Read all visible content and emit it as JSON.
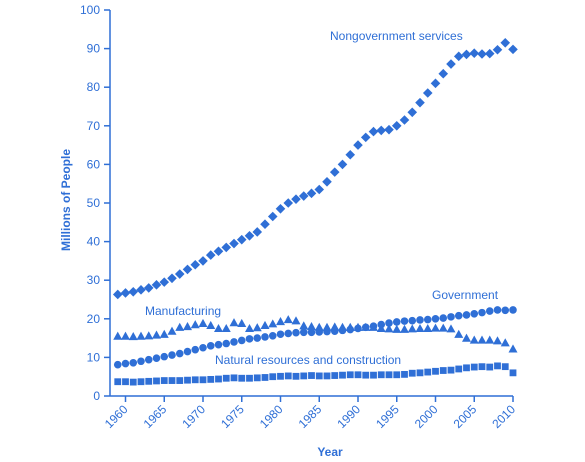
{
  "chart_data": {
    "type": "scatter",
    "xlabel": "Year",
    "ylabel": "Millions of People",
    "xlim": [
      1958,
      2010
    ],
    "ylim": [
      0,
      100
    ],
    "x_ticks": [
      "1960",
      "1965",
      "1970",
      "1975",
      "1980",
      "1985",
      "1990",
      "1995",
      "2000",
      "2005",
      "2010"
    ],
    "y_ticks": [
      "0",
      "10",
      "20",
      "30",
      "40",
      "50",
      "60",
      "70",
      "80",
      "90",
      "100"
    ],
    "grid": false,
    "series_color": "#2f6fd6",
    "series": [
      {
        "name": "Nongovernment services",
        "marker": "diamond",
        "x": [
          1959,
          1960,
          1961,
          1962,
          1963,
          1964,
          1965,
          1966,
          1967,
          1968,
          1969,
          1970,
          1971,
          1972,
          1973,
          1974,
          1975,
          1976,
          1977,
          1978,
          1979,
          1980,
          1981,
          1982,
          1983,
          1984,
          1985,
          1986,
          1987,
          1988,
          1989,
          1990,
          1991,
          1992,
          1993,
          1994,
          1995,
          1996,
          1997,
          1998,
          1999,
          2000,
          2001,
          2002,
          2003,
          2004,
          2005,
          2006,
          2007,
          2008,
          2009,
          2010
        ],
        "values": [
          26.3,
          26.7,
          27.0,
          27.5,
          28.0,
          28.8,
          29.5,
          30.5,
          31.6,
          32.8,
          34.0,
          35.0,
          36.5,
          37.5,
          38.5,
          39.5,
          40.5,
          41.5,
          42.5,
          44.5,
          46.5,
          48.5,
          50.0,
          51.0,
          51.8,
          52.5,
          53.5,
          55.5,
          58.0,
          60.0,
          62.5,
          65.0,
          67.0,
          68.5,
          68.8,
          69.0,
          70.0,
          71.5,
          73.5,
          76.0,
          78.5,
          81.0,
          83.5,
          86.0,
          88.0,
          88.5,
          88.8,
          88.6,
          88.7,
          89.7,
          91.5,
          89.8
        ]
      },
      {
        "name": "Government",
        "marker": "circle",
        "x": [
          1959,
          1960,
          1961,
          1962,
          1963,
          1964,
          1965,
          1966,
          1967,
          1968,
          1969,
          1970,
          1971,
          1972,
          1973,
          1974,
          1975,
          1976,
          1977,
          1978,
          1979,
          1980,
          1981,
          1982,
          1983,
          1984,
          1985,
          1986,
          1987,
          1988,
          1989,
          1990,
          1991,
          1992,
          1993,
          1994,
          1995,
          1996,
          1997,
          1998,
          1999,
          2000,
          2001,
          2002,
          2003,
          2004,
          2005,
          2006,
          2007,
          2008,
          2009,
          2010
        ],
        "values": [
          8.1,
          8.4,
          8.6,
          9.0,
          9.4,
          9.8,
          10.2,
          10.6,
          11.0,
          11.5,
          12.0,
          12.5,
          13.0,
          13.3,
          13.6,
          14.0,
          14.4,
          14.8,
          15.0,
          15.3,
          15.6,
          16.0,
          16.2,
          16.4,
          16.5,
          16.5,
          16.6,
          16.7,
          16.8,
          17.0,
          17.2,
          17.5,
          17.8,
          18.1,
          18.5,
          18.9,
          19.2,
          19.4,
          19.5,
          19.7,
          19.8,
          20.0,
          20.2,
          20.5,
          20.8,
          21.0,
          21.3,
          21.6,
          22.0,
          22.3,
          22.2,
          22.3
        ]
      },
      {
        "name": "Manufacturing",
        "marker": "triangle",
        "x": [
          1959,
          1960,
          1961,
          1962,
          1963,
          1964,
          1965,
          1966,
          1967,
          1968,
          1969,
          1970,
          1971,
          1972,
          1973,
          1974,
          1975,
          1976,
          1977,
          1978,
          1979,
          1980,
          1981,
          1982,
          1983,
          1984,
          1985,
          1986,
          1987,
          1988,
          1989,
          1990,
          1991,
          1992,
          1993,
          1994,
          1995,
          1996,
          1997,
          1998,
          1999,
          2000,
          2001,
          2002,
          2003,
          2004,
          2005,
          2006,
          2007,
          2008,
          2009,
          2010
        ],
        "values": [
          15.5,
          15.5,
          15.4,
          15.5,
          15.6,
          15.8,
          16.0,
          16.8,
          17.8,
          18.0,
          18.5,
          18.8,
          18.3,
          17.5,
          17.5,
          19.0,
          18.8,
          17.5,
          17.7,
          18.3,
          18.7,
          19.3,
          19.8,
          19.5,
          18.2,
          18.0,
          17.8,
          17.8,
          17.9,
          17.8,
          17.8,
          17.8,
          17.8,
          17.8,
          17.5,
          17.4,
          17.3,
          17.3,
          17.4,
          17.5,
          17.5,
          17.6,
          17.6,
          17.4,
          16.0,
          15.0,
          14.5,
          14.5,
          14.5,
          14.3,
          13.8,
          12.2
        ]
      },
      {
        "name": "Natural resources and construction",
        "marker": "square",
        "x": [
          1959,
          1960,
          1961,
          1962,
          1963,
          1964,
          1965,
          1966,
          1967,
          1968,
          1969,
          1970,
          1971,
          1972,
          1973,
          1974,
          1975,
          1976,
          1977,
          1978,
          1979,
          1980,
          1981,
          1982,
          1983,
          1984,
          1985,
          1986,
          1987,
          1988,
          1989,
          1990,
          1991,
          1992,
          1993,
          1994,
          1995,
          1996,
          1997,
          1998,
          1999,
          2000,
          2001,
          2002,
          2003,
          2004,
          2005,
          2006,
          2007,
          2008,
          2009,
          2010
        ],
        "values": [
          3.7,
          3.7,
          3.6,
          3.7,
          3.8,
          3.9,
          4.0,
          4.0,
          4.0,
          4.1,
          4.2,
          4.2,
          4.3,
          4.4,
          4.6,
          4.7,
          4.6,
          4.6,
          4.7,
          4.8,
          5.0,
          5.1,
          5.2,
          5.1,
          5.2,
          5.3,
          5.2,
          5.2,
          5.3,
          5.4,
          5.5,
          5.5,
          5.4,
          5.4,
          5.5,
          5.5,
          5.5,
          5.6,
          5.9,
          6.0,
          6.2,
          6.4,
          6.6,
          6.7,
          7.0,
          7.3,
          7.5,
          7.6,
          7.5,
          7.8,
          7.6,
          6.0
        ]
      }
    ]
  }
}
